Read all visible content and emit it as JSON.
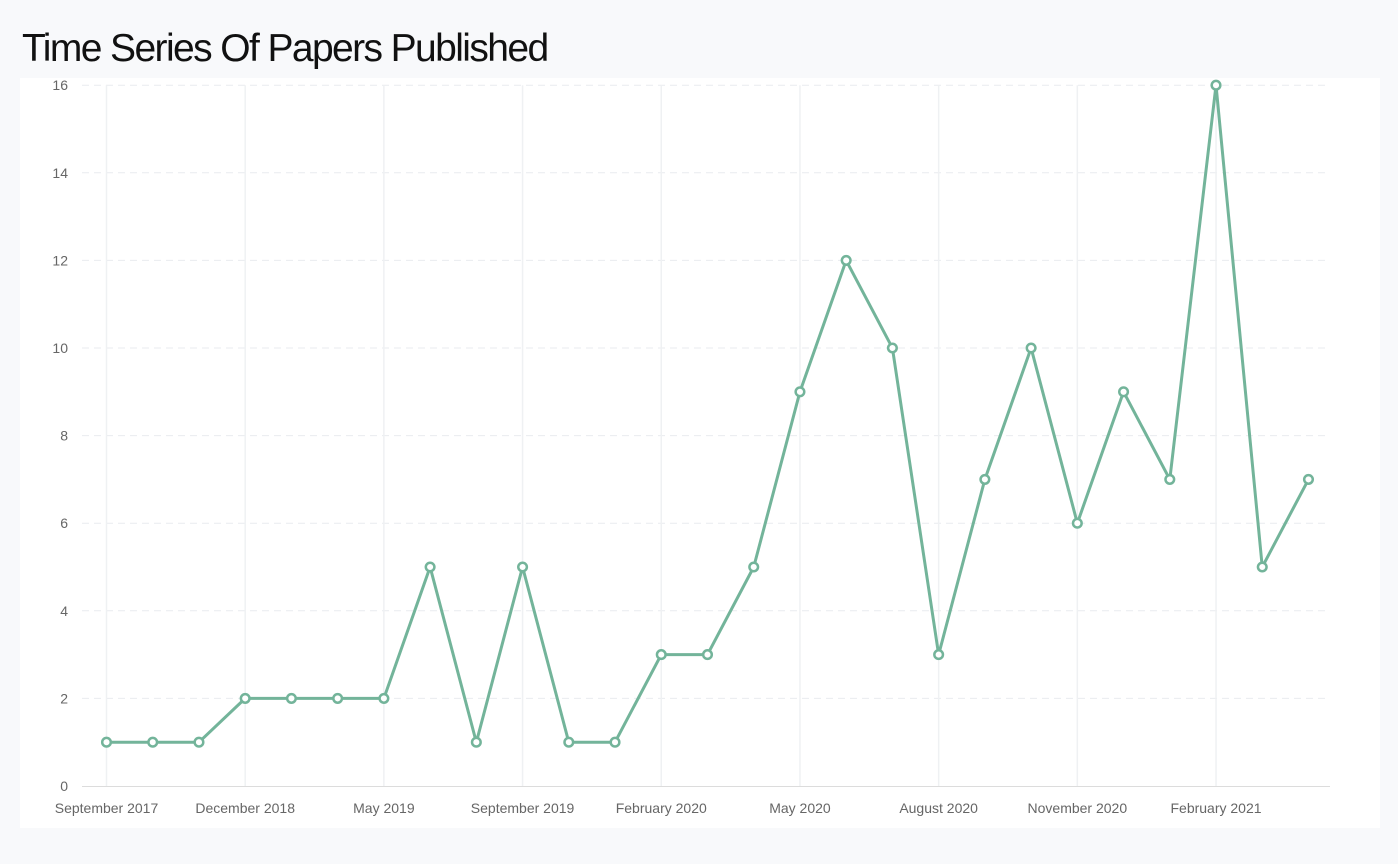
{
  "page": {
    "title": "Time Series Of Papers Published"
  },
  "chart_data": {
    "type": "line",
    "title": "Time Series Of Papers Published",
    "xlabel": "",
    "ylabel": "",
    "ylim": [
      0,
      16
    ],
    "yticks": [
      0,
      2,
      4,
      6,
      8,
      10,
      12,
      14,
      16
    ],
    "grid": true,
    "x_tick_labels": [
      "September 2017",
      "December 2018",
      "May 2019",
      "September 2019",
      "February 2020",
      "May 2020",
      "August 2020",
      "November 2020",
      "February 2021"
    ],
    "x_tick_index": [
      0,
      3,
      6,
      9,
      12,
      15,
      18,
      21,
      24
    ],
    "series": [
      {
        "values": [
          1,
          1,
          1,
          2,
          2,
          2,
          2,
          5,
          1,
          5,
          1,
          1,
          3,
          3,
          5,
          9,
          12,
          10,
          3,
          7,
          10,
          6,
          9,
          7,
          16,
          5,
          7
        ]
      }
    ],
    "colors": {
      "line": "#73b49a",
      "marker_fill": "#ffffff",
      "grid_horizontal": "#e9ebef",
      "grid_vertical": "#eff1f3",
      "tick_label": "#666666",
      "axis": "#dcdcdc"
    }
  }
}
